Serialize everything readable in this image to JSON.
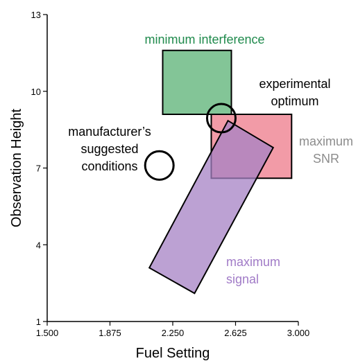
{
  "chart_data": {
    "type": "region-diagram",
    "xlabel": "Fuel Setting",
    "ylabel": "Observation Height",
    "xlim": [
      1.5,
      3.0
    ],
    "ylim": [
      1,
      13
    ],
    "x_ticks": [
      "1.500",
      "1.875",
      "2.250",
      "2.625",
      "3.000"
    ],
    "y_ticks": [
      "1",
      "4",
      "7",
      "10",
      "13"
    ],
    "grid": false,
    "regions": [
      {
        "label": "minimum interference",
        "shape": "rectangle",
        "x_range": [
          2.19,
          2.6
        ],
        "y_range": [
          9.1,
          11.6
        ],
        "fill": "#6dbb85",
        "label_color": "#1f8a4c"
      },
      {
        "label": "maximum SNR",
        "shape": "rectangle",
        "x_range": [
          2.48,
          2.96
        ],
        "y_range": [
          6.6,
          9.1
        ],
        "fill": "#f08a98",
        "label_color": "#8c8c8c"
      },
      {
        "label": "maximum signal",
        "shape": "rotated-rectangle",
        "corners": [
          [
            2.58,
            8.85
          ],
          [
            2.85,
            7.8
          ],
          [
            2.38,
            2.1
          ],
          [
            2.11,
            3.1
          ]
        ],
        "fill": "#a681c4",
        "label_color": "#a17bc7"
      }
    ],
    "markers": [
      {
        "label": "manufacturer’s suggested conditions",
        "lines": [
          "manufacturer’s",
          "suggested",
          "conditions"
        ],
        "shape": "circle",
        "center": [
          2.17,
          7.1
        ],
        "radius_x": 0.085
      },
      {
        "label": "experimental optimum",
        "lines": [
          "experimental",
          "optimum"
        ],
        "shape": "circle",
        "center": [
          2.54,
          8.95
        ],
        "radius_x": 0.085
      }
    ]
  }
}
